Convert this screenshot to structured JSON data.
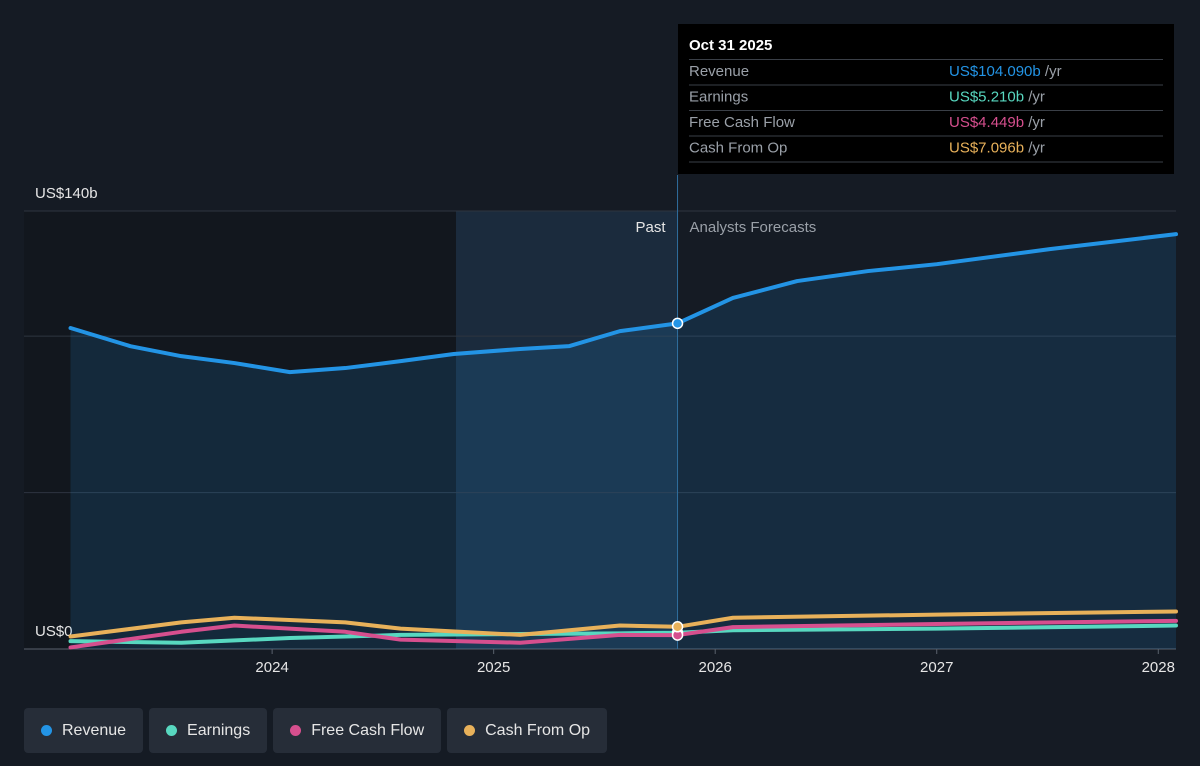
{
  "chart_data": {
    "type": "line",
    "xlim": [
      2022.88,
      2028.08
    ],
    "xticks": [
      2024,
      2025,
      2026,
      2027,
      2028
    ],
    "ylim": [
      0,
      140
    ],
    "yticks": [
      {
        "value": 0,
        "label": "US$0"
      },
      {
        "value": 140,
        "label": "US$140b"
      }
    ],
    "grid_values": [
      0,
      50,
      100,
      140
    ],
    "highlight_range": [
      2024.83,
      2025.83
    ],
    "divider_x": 2025.83,
    "past_label": "Past",
    "forecast_label": "Analysts Forecasts",
    "series": [
      {
        "name": "Revenue",
        "color": "#2394e5",
        "area": true,
        "x": [
          2023.09,
          2023.36,
          2023.59,
          2023.83,
          2024.08,
          2024.33,
          2024.58,
          2024.82,
          2025.12,
          2025.34,
          2025.57,
          2025.83,
          2026.08,
          2026.37,
          2026.69,
          2027.0,
          2027.51,
          2028.08
        ],
        "values": [
          102.6,
          96.8,
          93.6,
          91.4,
          88.5,
          89.8,
          92.0,
          94.3,
          95.9,
          96.8,
          101.6,
          104.09,
          112.2,
          117.6,
          120.8,
          123.0,
          127.8,
          132.6
        ]
      },
      {
        "name": "Earnings",
        "color": "#58d8c0",
        "x": [
          2023.09,
          2023.59,
          2024.08,
          2024.58,
          2025.12,
          2025.57,
          2025.83,
          2026.08,
          2027.0,
          2028.08
        ],
        "values": [
          2.5,
          2.0,
          3.5,
          4.5,
          4.8,
          5.0,
          5.21,
          6.0,
          6.5,
          7.5
        ]
      },
      {
        "name": "Free Cash Flow",
        "color": "#d64f8e",
        "x": [
          2023.09,
          2023.59,
          2023.83,
          2024.33,
          2024.58,
          2025.12,
          2025.57,
          2025.83,
          2026.08,
          2027.0,
          2028.08
        ],
        "values": [
          0.5,
          5.5,
          7.5,
          5.5,
          3.0,
          2.0,
          4.5,
          4.449,
          7.0,
          8.0,
          9.0
        ]
      },
      {
        "name": "Cash From Op",
        "color": "#e8b15a",
        "x": [
          2023.09,
          2023.59,
          2023.83,
          2024.33,
          2024.58,
          2025.12,
          2025.57,
          2025.83,
          2026.08,
          2027.0,
          2028.08
        ],
        "values": [
          4.0,
          8.5,
          10.0,
          8.5,
          6.5,
          4.5,
          7.5,
          7.096,
          10.0,
          11.0,
          12.0
        ]
      }
    ],
    "tooltip": {
      "date": "Oct 31 2025",
      "rows": [
        {
          "label": "Revenue",
          "value": 104.09,
          "value_label": "US$104.090b",
          "suffix": "/yr",
          "color": "#2394e5"
        },
        {
          "label": "Earnings",
          "value": 5.21,
          "value_label": "US$5.210b",
          "suffix": "/yr",
          "color": "#58d8c0"
        },
        {
          "label": "Free Cash Flow",
          "value": 4.449,
          "value_label": "US$4.449b",
          "suffix": "/yr",
          "color": "#d64f8e"
        },
        {
          "label": "Cash From Op",
          "value": 7.096,
          "value_label": "US$7.096b",
          "suffix": "/yr",
          "color": "#e8b15a"
        }
      ]
    }
  }
}
